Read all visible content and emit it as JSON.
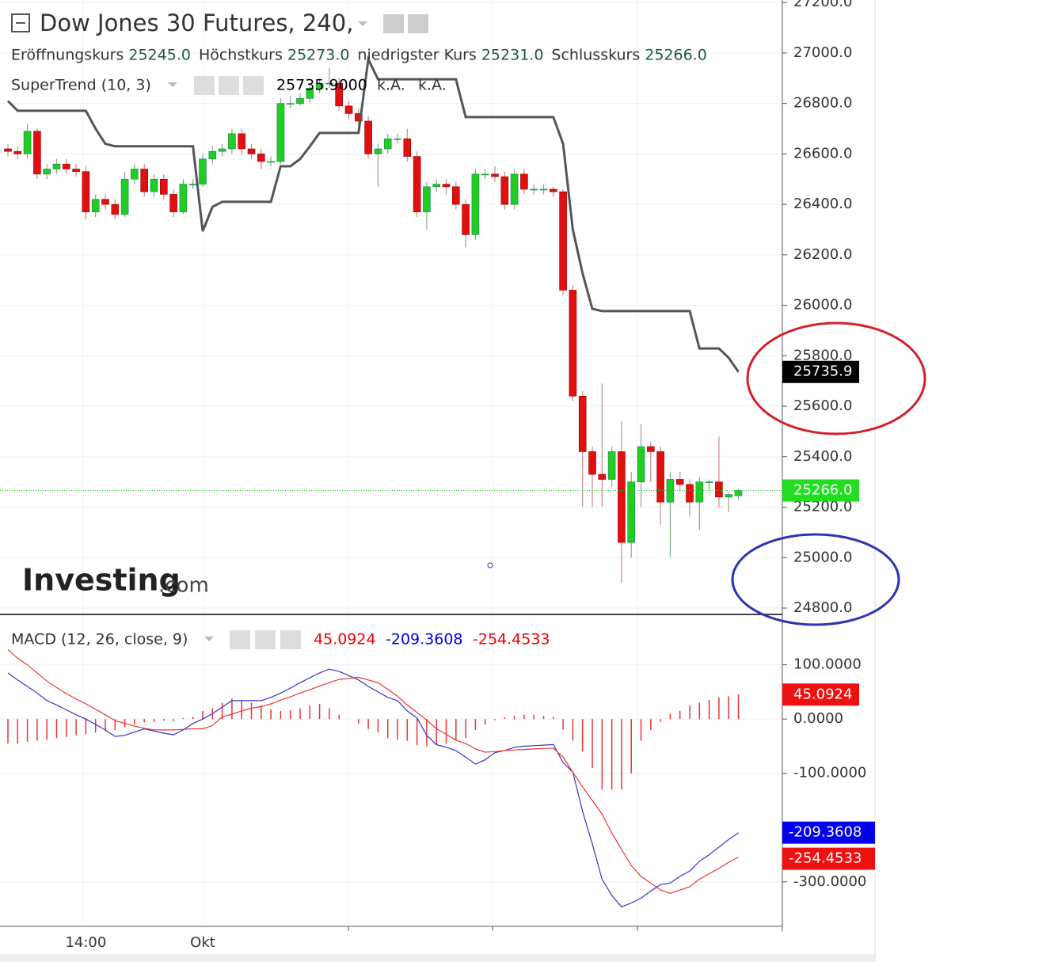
{
  "chart_data": [
    {
      "type": "candlestick",
      "title": "Dow Jones 30 Futures, 240,",
      "legend": [
        {
          "label": "Eröffnungskurs",
          "value": "25245.0"
        },
        {
          "label": "Höchstkurs",
          "value": "25273.0"
        },
        {
          "label": "niedrigster Kurs",
          "value": "25231.0"
        },
        {
          "label": "Schlusskurs",
          "value": "25266.0"
        }
      ],
      "watermark": [
        "Investing",
        ".com"
      ],
      "categories": [
        null,
        null,
        null,
        null,
        null,
        null,
        null,
        null,
        "14:00",
        null,
        null,
        null,
        null,
        null,
        null,
        null,
        null,
        null,
        null,
        null,
        "Okt",
        null,
        null,
        null,
        null,
        null,
        null,
        null,
        null,
        null,
        null,
        null,
        null,
        null,
        null,
        null,
        null,
        null,
        null,
        null,
        null,
        null,
        null,
        null,
        null,
        null,
        null,
        null,
        null,
        null,
        null,
        null,
        null,
        null,
        null,
        null,
        null,
        null,
        null,
        null,
        null,
        null,
        null,
        null,
        null,
        null,
        null,
        null,
        null,
        null,
        null,
        null,
        null,
        null,
        null,
        null
      ],
      "open": [
        26620,
        26610,
        26600,
        26690,
        26520,
        26540,
        26560,
        26540,
        26530,
        26370,
        26420,
        26400,
        26360,
        26500,
        26540,
        26450,
        26500,
        26440,
        26370,
        26480,
        26480,
        26580,
        26610,
        26620,
        26680,
        26620,
        26600,
        26570,
        26570,
        26800,
        26800,
        26820,
        26860,
        26880,
        26880,
        26790,
        26760,
        26730,
        26600,
        26620,
        26660,
        26660,
        26590,
        26370,
        26470,
        26480,
        26470,
        26400,
        26280,
        26520,
        26520,
        26510,
        26400,
        26520,
        26460,
        26460,
        26460,
        26450,
        26060,
        25640,
        25420,
        25330,
        25310,
        25420,
        25060,
        25300,
        25440,
        25420,
        25220,
        25310,
        25290,
        25220,
        25300,
        25300,
        25240,
        25245
      ],
      "high": [
        26640,
        26630,
        26720,
        26700,
        26560,
        26580,
        26580,
        26560,
        26550,
        26440,
        26440,
        26420,
        26530,
        26560,
        26560,
        26520,
        26520,
        26460,
        26500,
        26500,
        26600,
        26630,
        26640,
        26700,
        26700,
        26640,
        26620,
        26590,
        26820,
        26830,
        26840,
        26880,
        26900,
        26940,
        26900,
        26810,
        26780,
        26750,
        26640,
        26680,
        26680,
        26700,
        26610,
        26490,
        26500,
        26500,
        26490,
        26420,
        26540,
        26540,
        26550,
        26530,
        26540,
        26540,
        26480,
        26480,
        26470,
        26460,
        26080,
        25660,
        25440,
        25690,
        25440,
        25540,
        25340,
        25530,
        25460,
        25440,
        25340,
        25340,
        25310,
        25320,
        25310,
        25480,
        25260,
        25273
      ],
      "low": [
        26590,
        26580,
        26580,
        26500,
        26500,
        26520,
        26520,
        26510,
        26340,
        26350,
        26380,
        26340,
        26350,
        26480,
        26430,
        26430,
        26420,
        26350,
        26360,
        26460,
        26470,
        26560,
        26590,
        26600,
        26600,
        26580,
        26540,
        26550,
        26560,
        26780,
        26790,
        26800,
        26840,
        26860,
        26770,
        26740,
        26710,
        26580,
        26470,
        26600,
        26640,
        26570,
        26350,
        26300,
        26450,
        26440,
        26380,
        26230,
        26260,
        26500,
        26490,
        26380,
        26380,
        26440,
        26440,
        26440,
        26430,
        26040,
        25620,
        25200,
        25200,
        25200,
        25280,
        24900,
        25000,
        25200,
        25300,
        25130,
        25000,
        25260,
        25160,
        25110,
        25270,
        25200,
        25180,
        25231
      ],
      "close": [
        26610,
        26600,
        26690,
        26520,
        26540,
        26560,
        26540,
        26530,
        26370,
        26420,
        26400,
        26360,
        26500,
        26540,
        26450,
        26500,
        26440,
        26370,
        26480,
        26480,
        26580,
        26610,
        26620,
        26680,
        26620,
        26600,
        26570,
        26570,
        26800,
        26800,
        26820,
        26860,
        26880,
        26880,
        26790,
        26760,
        26730,
        26600,
        26620,
        26660,
        26660,
        26590,
        26370,
        26470,
        26480,
        26470,
        26400,
        26280,
        26520,
        26520,
        26510,
        26400,
        26520,
        26460,
        26460,
        26460,
        26450,
        26060,
        25640,
        25420,
        25330,
        25310,
        25420,
        25060,
        25300,
        25440,
        25420,
        25220,
        25310,
        25290,
        25220,
        25300,
        25300,
        25240,
        25250,
        25266
      ],
      "up_color": "#22cc22",
      "down_color": "#e01010",
      "supertrend": {
        "name": "SuperTrend (10, 3)",
        "readout": "25735.9000",
        "na": [
          "k.A.",
          "k.A."
        ],
        "color": "#555555",
        "values": [
          26810,
          26771,
          26771,
          26771,
          26771,
          26771,
          26771,
          26771,
          26771,
          26700,
          26640,
          26630,
          26630,
          26630,
          26630,
          26630,
          26630,
          26630,
          26630,
          26630,
          26294,
          26390,
          26410,
          26410,
          26410,
          26410,
          26410,
          26410,
          26551,
          26551,
          26580,
          26630,
          26683,
          26683,
          26683,
          26683,
          26683,
          26975,
          26896,
          26896,
          26896,
          26896,
          26896,
          26896,
          26896,
          26896,
          26896,
          26746,
          26746,
          26746,
          26746,
          26746,
          26746,
          26746,
          26746,
          26746,
          26746,
          26640,
          26300,
          26127,
          25986,
          25977,
          25977,
          25977,
          25977,
          25977,
          25977,
          25977,
          25977,
          25977,
          25977,
          25829,
          25829,
          25829,
          25792,
          25735.9
        ]
      },
      "ylim": [
        24778,
        27210
      ],
      "yticks": [
        {
          "value": 27200,
          "label": "27200.0"
        },
        {
          "value": 27000,
          "label": "27000.0"
        },
        {
          "value": 26800,
          "label": "26800.0"
        },
        {
          "value": 26600,
          "label": "26600.0"
        },
        {
          "value": 26400,
          "label": "26400.0"
        },
        {
          "value": 26200,
          "label": "26200.0"
        },
        {
          "value": 26000,
          "label": "26000.0"
        },
        {
          "value": 25800,
          "label": "25800.0"
        },
        {
          "value": 25600,
          "label": "25600.0"
        },
        {
          "value": 25400,
          "label": "25400.0"
        },
        {
          "value": 25200,
          "label": "25200.0"
        },
        {
          "value": 25000,
          "label": "25000.0"
        },
        {
          "value": 24800,
          "label": "24800.0"
        }
      ],
      "grid": true
    },
    {
      "type": "macd",
      "title": "MACD (12, 26, close, 9)",
      "series": [
        {
          "color": "#3333cc",
          "values": [
            85,
            72,
            60,
            48,
            34,
            26,
            17,
            8,
            0,
            -10,
            -20,
            -32,
            -30,
            -24,
            -18,
            -22,
            -26,
            -29,
            -20,
            -8,
            0,
            10,
            22,
            34,
            34,
            34,
            34,
            40,
            48,
            57,
            67,
            76,
            85,
            92,
            88,
            80,
            72,
            60,
            50,
            40,
            34,
            15,
            2,
            -30,
            -47,
            -52,
            -58,
            -70,
            -83,
            -75,
            -62,
            -58,
            -52,
            -50,
            -49,
            -48,
            -47,
            -80,
            -98,
            -170,
            -230,
            -295,
            -325,
            -346,
            -339,
            -330,
            -317,
            -305,
            -302,
            -290,
            -280,
            -262,
            -250,
            -236,
            -222,
            -209.3608
          ],
          "badge": "#0000ee"
        },
        {
          "color": "#ee3333",
          "values": [
            128,
            112,
            100,
            85,
            70,
            58,
            47,
            37,
            28,
            18,
            8,
            -3,
            -8,
            -13,
            -17,
            -20,
            -20,
            -20,
            -19,
            -18,
            -18,
            -12,
            4,
            9,
            15,
            20,
            23,
            28,
            35,
            41,
            48,
            54,
            61,
            67,
            73,
            75,
            77,
            72,
            67,
            55,
            42,
            26,
            12,
            -2,
            -18,
            -28,
            -39,
            -45,
            -55,
            -61,
            -60,
            -58,
            -57,
            -56,
            -55,
            -54,
            -54,
            -70,
            -98,
            -125,
            -150,
            -175,
            -210,
            -240,
            -270,
            -290,
            -302,
            -315,
            -321,
            -315,
            -309,
            -295,
            -285,
            -275,
            -264,
            -254.4533
          ],
          "badge": "#ee1111"
        }
      ],
      "histogram": {
        "color": "#ee3333",
        "values": [
          -45,
          -45,
          -42,
          -40,
          -38,
          -35,
          -33,
          -30,
          -28,
          -25,
          -22,
          -20,
          -15,
          -10,
          -6,
          -5,
          -3,
          -4,
          2,
          4,
          15,
          20,
          30,
          38,
          35,
          30,
          25,
          18,
          15,
          16,
          20,
          25,
          28,
          20,
          8,
          0,
          -8,
          -18,
          -25,
          -35,
          -38,
          -40,
          -48,
          -50,
          -48,
          -45,
          -40,
          -35,
          -20,
          -10,
          -2,
          3,
          6,
          8,
          8,
          6,
          4,
          -20,
          -40,
          -60,
          -90,
          -130,
          -130,
          -130,
          -100,
          -40,
          -20,
          -5,
          10,
          15,
          25,
          30,
          35,
          40,
          42,
          45.0924
        ]
      },
      "ylim": [
        -382,
        187
      ],
      "yticks": [
        {
          "value": 100,
          "label": "100.0000"
        },
        {
          "value": 0,
          "label": "0.0000"
        },
        {
          "value": -100,
          "label": "-100.0000"
        },
        {
          "value": -300,
          "label": "-300.0000"
        }
      ],
      "grid": true
    }
  ]
}
